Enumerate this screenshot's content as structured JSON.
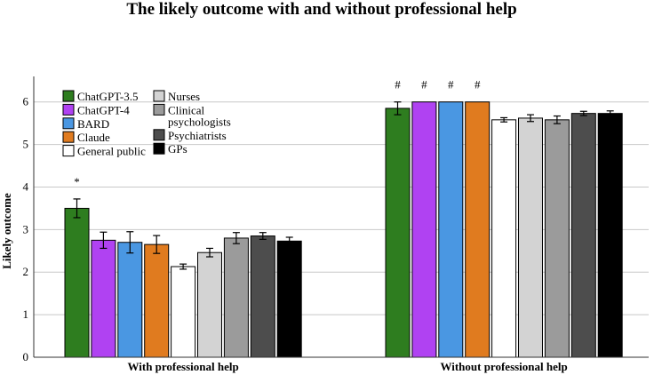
{
  "chart_data": {
    "type": "bar",
    "title": "The likely outcome with and without professional help",
    "xlabel": "",
    "ylabel": "Likely outcome",
    "ylim": [
      0,
      6.6
    ],
    "yticks": [
      0,
      1,
      2,
      3,
      4,
      5,
      6
    ],
    "grid": true,
    "categories": [
      "With professional help",
      "Without professional help"
    ],
    "series": [
      {
        "name": "ChatGPT-3.5",
        "color": "#2e7d1f",
        "values": [
          3.5,
          5.85
        ],
        "errors": [
          0.22,
          0.15
        ],
        "annotations": [
          "*",
          "#"
        ]
      },
      {
        "name": "ChatGPT-4",
        "color": "#b042f2",
        "values": [
          2.75,
          6.0
        ],
        "errors": [
          0.19,
          0.0
        ],
        "annotations": [
          "",
          "#"
        ]
      },
      {
        "name": "BARD",
        "color": "#4a97e2",
        "values": [
          2.7,
          6.0
        ],
        "errors": [
          0.25,
          0.0
        ],
        "annotations": [
          "",
          "#"
        ]
      },
      {
        "name": "Claude",
        "color": "#e07b1f",
        "values": [
          2.65,
          6.0
        ],
        "errors": [
          0.21,
          0.0
        ],
        "annotations": [
          "",
          "#"
        ]
      },
      {
        "name": "General public",
        "color": "#ffffff",
        "values": [
          2.13,
          5.58
        ],
        "errors": [
          0.06,
          0.05
        ],
        "annotations": [
          "",
          ""
        ]
      },
      {
        "name": "Nurses",
        "color": "#d3d3d3",
        "values": [
          2.46,
          5.62
        ],
        "errors": [
          0.1,
          0.08
        ],
        "annotations": [
          "",
          ""
        ]
      },
      {
        "name": "Clinical psychologists",
        "color": "#9b9b9b",
        "values": [
          2.8,
          5.58
        ],
        "errors": [
          0.13,
          0.09
        ],
        "annotations": [
          "",
          ""
        ]
      },
      {
        "name": "Psychiatrists",
        "color": "#4d4d4d",
        "values": [
          2.85,
          5.73
        ],
        "errors": [
          0.08,
          0.05
        ],
        "annotations": [
          "",
          ""
        ]
      },
      {
        "name": "GPs",
        "color": "#000000",
        "values": [
          2.73,
          5.73
        ],
        "errors": [
          0.09,
          0.06
        ],
        "annotations": [
          "",
          ""
        ]
      }
    ],
    "legend": {
      "placement": "top-left",
      "columns": [
        [
          {
            "lines": [
              "ChatGPT-3.5"
            ]
          },
          {
            "lines": [
              "ChatGPT-4"
            ]
          },
          {
            "lines": [
              "BARD"
            ]
          },
          {
            "lines": [
              "Claude"
            ]
          },
          {
            "lines": [
              "General public"
            ]
          }
        ],
        [
          {
            "lines": [
              "Nurses"
            ]
          },
          {
            "lines": [
              "Clinical",
              "psychologists"
            ]
          },
          {
            "lines": [
              "Psychiatrists"
            ]
          },
          {
            "lines": [
              "GPs"
            ]
          }
        ]
      ]
    }
  }
}
